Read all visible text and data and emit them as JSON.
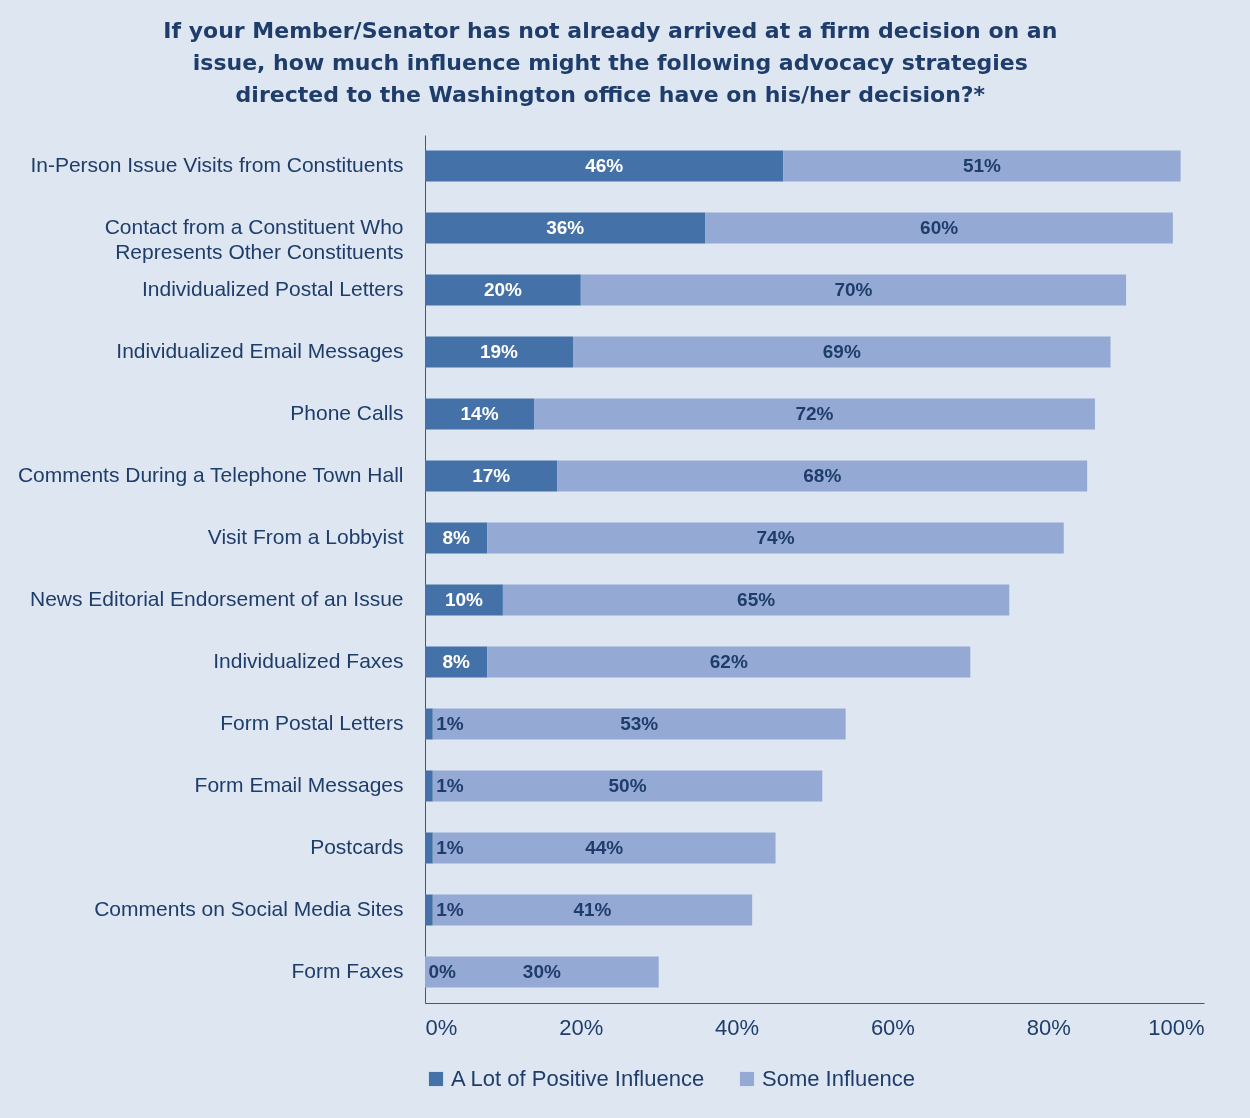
{
  "chart_data": {
    "type": "bar",
    "orientation": "horizontal",
    "stacked": true,
    "title": "If your Member/Senator has not already arrived at a firm decision on an\nissue, how much influence might the following advocacy strategies\ndirected to the Washington office have on his/her decision?*",
    "categories": [
      "In-Person Issue Visits from Constituents",
      "Contact from a Constituent Who Represents Other Constituents",
      "Individualized Postal Letters",
      "Individualized Email Messages",
      "Phone Calls",
      "Comments During a Telephone Town Hall",
      "Visit From a Lobbyist",
      "News Editorial Endorsement of an Issue",
      "Individualized Faxes",
      "Form Postal Letters",
      "Form Email Messages",
      "Postcards",
      "Comments on Social Media Sites",
      "Form Faxes"
    ],
    "series": [
      {
        "name": "A Lot of Positive Influence",
        "color": "#4472a8",
        "values": [
          46,
          36,
          20,
          19,
          14,
          17,
          8,
          10,
          8,
          1,
          1,
          1,
          1,
          0
        ]
      },
      {
        "name": "Some Influence",
        "color": "#94aad4",
        "values": [
          51,
          60,
          70,
          69,
          72,
          68,
          74,
          65,
          62,
          53,
          50,
          44,
          41,
          30
        ]
      }
    ],
    "xlim": [
      0,
      100
    ],
    "xticks": [
      {
        "value": 0,
        "label": "0%"
      },
      {
        "value": 20,
        "label": "20%"
      },
      {
        "value": 40,
        "label": "40%"
      },
      {
        "value": 60,
        "label": "60%"
      },
      {
        "value": 80,
        "label": "80%"
      },
      {
        "value": 100,
        "label": "100%"
      }
    ],
    "value_labels": [
      [
        "46%",
        "36%",
        "20%",
        "19%",
        "14%",
        "17%",
        "8%",
        "10%",
        "8%",
        "1%",
        "1%",
        "1%",
        "1%",
        "0%"
      ],
      [
        "51%",
        "60%",
        "70%",
        "69%",
        "72%",
        "68%",
        "74%",
        "65%",
        "62%",
        "53%",
        "50%",
        "44%",
        "41%",
        "30%"
      ]
    ],
    "grid": false,
    "legend": "bottom"
  }
}
